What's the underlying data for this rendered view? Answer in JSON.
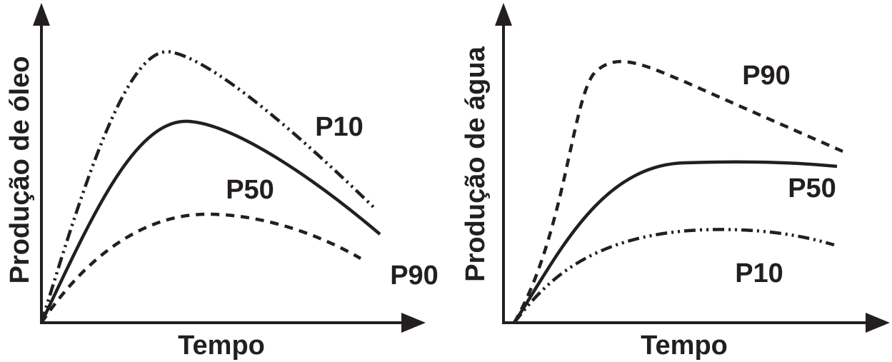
{
  "panels": [
    {
      "y_label": "Produção de óleo",
      "x_label": "Tempo",
      "curve_labels": [
        "P10",
        "P50",
        "P90"
      ]
    },
    {
      "y_label": "Produção de água",
      "x_label": "Tempo",
      "curve_labels": [
        "P90",
        "P50",
        "P10"
      ]
    }
  ]
}
